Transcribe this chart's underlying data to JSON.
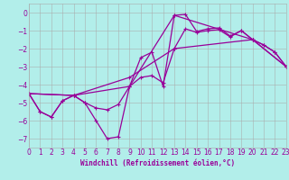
{
  "bg_color": "#b2eeea",
  "grid_color": "#aaaaaa",
  "line_color": "#990099",
  "xlabel": "Windchill (Refroidissement éolien,°C)",
  "xlim": [
    0,
    23
  ],
  "ylim": [
    -7.5,
    0.5
  ],
  "yticks": [
    0,
    -1,
    -2,
    -3,
    -4,
    -5,
    -6,
    -7
  ],
  "xticks": [
    0,
    1,
    2,
    3,
    4,
    5,
    6,
    7,
    8,
    9,
    10,
    11,
    12,
    13,
    14,
    15,
    16,
    17,
    18,
    19,
    20,
    21,
    22,
    23
  ],
  "line1": {
    "x": [
      0,
      1,
      2,
      3,
      4,
      5,
      6,
      7,
      8,
      9,
      10,
      11,
      12,
      13,
      14,
      15,
      16,
      17,
      18,
      19,
      20,
      21,
      22,
      23
    ],
    "y": [
      -4.5,
      -5.5,
      -5.8,
      -4.9,
      -4.6,
      -5.0,
      -6.0,
      -7.0,
      -6.9,
      -4.1,
      -2.5,
      -2.2,
      -4.1,
      -0.15,
      -0.1,
      -1.05,
      -0.9,
      -0.85,
      -1.3,
      -1.0,
      -1.5,
      -1.8,
      -2.2,
      -3.0
    ]
  },
  "line2": {
    "x": [
      0,
      1,
      2,
      3,
      4,
      5,
      6,
      7,
      8,
      9,
      10,
      11,
      12,
      13,
      14,
      15,
      16,
      17,
      18,
      19,
      20,
      21,
      22,
      23
    ],
    "y": [
      -4.5,
      -5.5,
      -5.8,
      -4.9,
      -4.6,
      -5.0,
      -5.3,
      -5.4,
      -5.1,
      -4.1,
      -3.6,
      -3.5,
      -3.9,
      -2.0,
      -0.9,
      -1.1,
      -1.0,
      -0.95,
      -1.35,
      -1.0,
      -1.5,
      -1.8,
      -2.2,
      -3.0
    ]
  },
  "line3": {
    "x": [
      0,
      4,
      9,
      13,
      20,
      23
    ],
    "y": [
      -4.5,
      -4.6,
      -4.1,
      -0.15,
      -1.5,
      -3.0
    ]
  },
  "line4": {
    "x": [
      0,
      4,
      9,
      13,
      20,
      23
    ],
    "y": [
      -4.5,
      -4.6,
      -3.6,
      -2.0,
      -1.5,
      -3.0
    ]
  }
}
